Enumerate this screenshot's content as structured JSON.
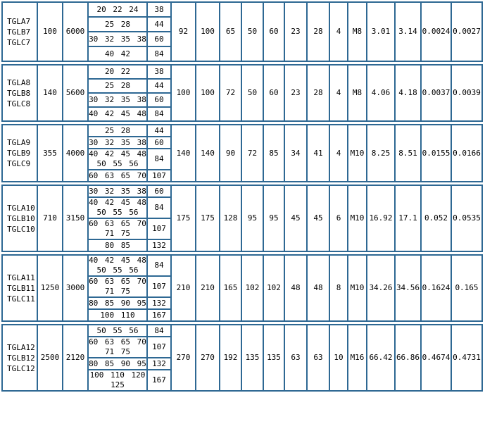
{
  "table": {
    "border_color": "#2e6893",
    "text_color": "#000000",
    "background_color": "#ffffff",
    "groups": [
      {
        "models": [
          "TGLA7",
          "TGLB7",
          "TGLC7"
        ],
        "nominal_torque": "100",
        "max_speed": "6000",
        "rows": [
          {
            "bores": [
              "20 22 24"
            ],
            "length": "38"
          },
          {
            "bores": [
              "25 28"
            ],
            "length": "44"
          },
          {
            "bores": [
              "30 32 35 38"
            ],
            "length": "60"
          },
          {
            "bores": [
              "40 42"
            ],
            "length": "84"
          }
        ],
        "shared": [
          "92",
          "100",
          "65",
          "50",
          "60",
          "23",
          "28",
          "4",
          "M8",
          "3.01",
          "3.14",
          "0.0024",
          "0.0027"
        ]
      },
      {
        "models": [
          "TGLA8",
          "TGLB8",
          "TGLC8"
        ],
        "nominal_torque": "140",
        "max_speed": "5600",
        "rows": [
          {
            "bores": [
              "20 22"
            ],
            "length": "38"
          },
          {
            "bores": [
              "25 28"
            ],
            "length": "44"
          },
          {
            "bores": [
              "30 32 35 38"
            ],
            "length": "60"
          },
          {
            "bores": [
              "40 42 45 48"
            ],
            "length": "84"
          }
        ],
        "shared": [
          "100",
          "100",
          "72",
          "50",
          "60",
          "23",
          "28",
          "4",
          "M8",
          "4.06",
          "4.18",
          "0.0037",
          "0.0039"
        ]
      },
      {
        "models": [
          "TGLA9",
          "TGLB9",
          "TGLC9"
        ],
        "nominal_torque": "355",
        "max_speed": "4000",
        "rows": [
          {
            "bores": [
              "25 28"
            ],
            "length": "44"
          },
          {
            "bores": [
              "30 32 35 38"
            ],
            "length": "60"
          },
          {
            "bores": [
              "40 42 45 48",
              "50 55 56"
            ],
            "length": "84"
          },
          {
            "bores": [
              "60 63 65 70"
            ],
            "length": "107"
          }
        ],
        "shared": [
          "140",
          "140",
          "90",
          "72",
          "85",
          "34",
          "41",
          "4",
          "M10",
          "8.25",
          "8.51",
          "0.0155",
          "0.0166"
        ]
      },
      {
        "models": [
          "TGLA10",
          "TGLB10",
          "TGLC10"
        ],
        "nominal_torque": "710",
        "max_speed": "3150",
        "rows": [
          {
            "bores": [
              "30 32 35 38"
            ],
            "length": "60"
          },
          {
            "bores": [
              "40 42 45 48",
              "50 55 56"
            ],
            "length": "84"
          },
          {
            "bores": [
              "60 63 65 70",
              "71 75"
            ],
            "length": "107"
          },
          {
            "bores": [
              "80 85"
            ],
            "length": "132"
          }
        ],
        "shared": [
          "175",
          "175",
          "128",
          "95",
          "95",
          "45",
          "45",
          "6",
          "M10",
          "16.92",
          "17.1",
          "0.052",
          "0.0535"
        ]
      },
      {
        "models": [
          "TGLA11",
          "TGLB11",
          "TGLC11"
        ],
        "nominal_torque": "1250",
        "max_speed": "3000",
        "rows": [
          {
            "bores": [
              "40 42 45 48",
              "50 55 56"
            ],
            "length": "84"
          },
          {
            "bores": [
              "60 63 65 70",
              "71 75"
            ],
            "length": "107"
          },
          {
            "bores": [
              "80 85 90 95"
            ],
            "length": "132"
          },
          {
            "bores": [
              "100 110"
            ],
            "length": "167"
          }
        ],
        "shared": [
          "210",
          "210",
          "165",
          "102",
          "102",
          "48",
          "48",
          "8",
          "M10",
          "34.26",
          "34.56",
          "0.1624",
          "0.165"
        ]
      },
      {
        "models": [
          "TGLA12",
          "TGLB12",
          "TGLC12"
        ],
        "nominal_torque": "2500",
        "max_speed": "2120",
        "rows": [
          {
            "bores": [
              "50 55 56"
            ],
            "length": "84"
          },
          {
            "bores": [
              "60 63 65 70",
              "71 75"
            ],
            "length": "107"
          },
          {
            "bores": [
              "80 85 90 95"
            ],
            "length": "132"
          },
          {
            "bores": [
              "100 110 120",
              "125"
            ],
            "length": "167"
          }
        ],
        "shared": [
          "270",
          "270",
          "192",
          "135",
          "135",
          "63",
          "63",
          "10",
          "M16",
          "66.42",
          "66.86",
          "0.4674",
          "0.4731"
        ]
      }
    ]
  }
}
